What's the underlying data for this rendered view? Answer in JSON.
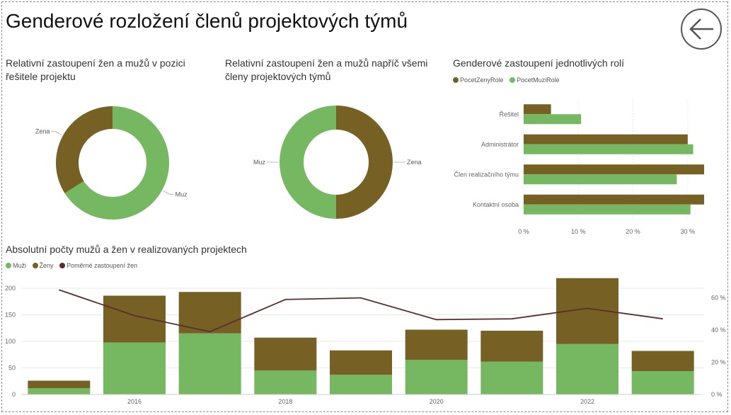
{
  "page": {
    "title": "Genderové rozložení členů projektových týmů"
  },
  "colors": {
    "zeny": "#766024",
    "muzi": "#76b862",
    "ratio": "#5a2e2e",
    "grid": "#e8e8e8"
  },
  "icons": {
    "back": "back-arrow-icon"
  },
  "chart_data": [
    {
      "id": "donut1",
      "type": "pie",
      "title": "Relativní zastoupení žen a mužů v pozici řešitele projektu",
      "slices": [
        {
          "label": "Muz",
          "value": 66
        },
        {
          "label": "Zena",
          "value": 34
        }
      ]
    },
    {
      "id": "donut2",
      "type": "pie",
      "title": "Relativní zastoupení žen a mužů napříč všemi členy projektových týmů",
      "slices": [
        {
          "label": "Zena",
          "value": 50
        },
        {
          "label": "Muz",
          "value": 50
        }
      ]
    },
    {
      "id": "roles",
      "type": "bar",
      "orientation": "horizontal",
      "title": "Genderové zastoupení jednotlivých rolí",
      "categories": [
        "Řešitel",
        "Administrátor",
        "Člen realizačního týmu",
        "Kontaktní osoba"
      ],
      "series": [
        {
          "name": "PocetZenyRole",
          "values": [
            5,
            30,
            33,
            33
          ]
        },
        {
          "name": "PocetMuziRole",
          "values": [
            10.5,
            31,
            28,
            30.5
          ]
        }
      ],
      "xlim": [
        0,
        33
      ],
      "xticks": [
        "0 %",
        "10 %",
        "20 %",
        "30 %"
      ],
      "grid": true,
      "legend": "top-left"
    },
    {
      "id": "yearly",
      "type": "bar",
      "stacked": true,
      "title": "Absolutní počty mužů a žen v realizovaných projektech",
      "x": [
        2015,
        2016,
        2017,
        2018,
        2019,
        2020,
        2021,
        2022,
        2023
      ],
      "xticks": [
        "2016",
        "2018",
        "2020",
        "2022"
      ],
      "series": [
        {
          "name": "Muži",
          "values": [
            12,
            98,
            115,
            45,
            37,
            65,
            62,
            95,
            44
          ]
        },
        {
          "name": "Ženy",
          "values": [
            14,
            88,
            78,
            62,
            46,
            57,
            58,
            124,
            38
          ]
        },
        {
          "name": "Poměrné zastoupení žen",
          "type": "line",
          "axis": "right",
          "values": [
            65,
            49,
            39,
            59,
            60,
            46.5,
            47,
            53.5,
            47
          ]
        }
      ],
      "ylim": [
        0,
        200
      ],
      "yticks": [
        "0",
        "50",
        "100",
        "150",
        "200"
      ],
      "ylim_right": [
        0,
        60
      ],
      "yticks_right": [
        "0 %",
        "20 %",
        "40 %",
        "60 %"
      ],
      "grid": true,
      "legend": "top-left"
    }
  ]
}
